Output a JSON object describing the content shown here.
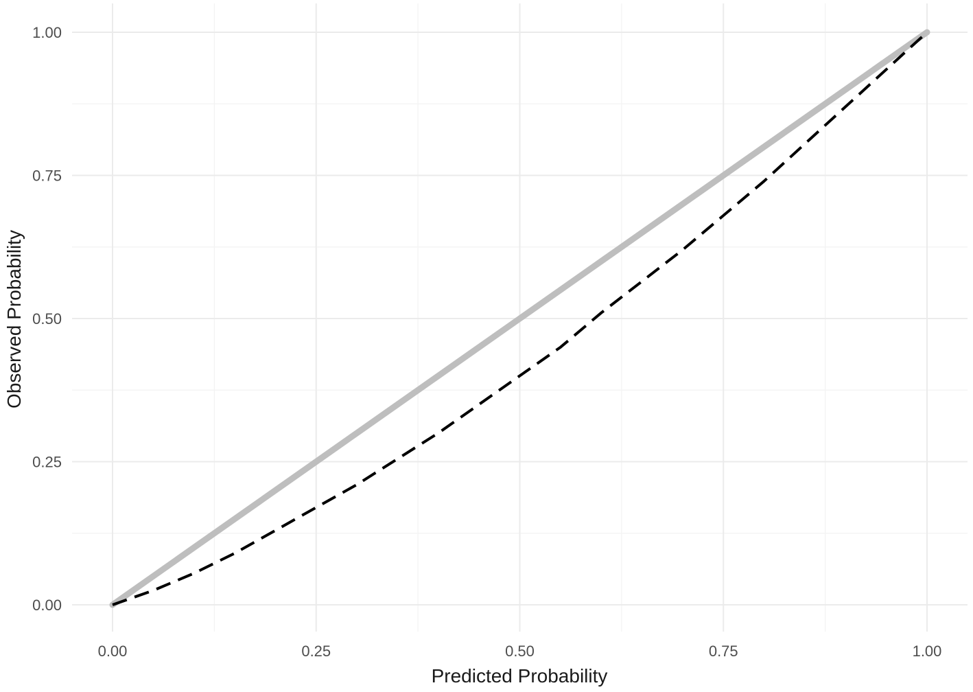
{
  "chart_data": {
    "type": "line",
    "title": "",
    "xlabel": "Predicted Probability",
    "ylabel": "Observed Probability",
    "xlim": [
      0,
      1
    ],
    "ylim": [
      0,
      1
    ],
    "x_ticks": [
      0,
      0.25,
      0.5,
      0.75,
      1
    ],
    "x_tick_labels": [
      "0.00",
      "0.25",
      "0.50",
      "0.75",
      "1.00"
    ],
    "y_ticks": [
      0,
      0.25,
      0.5,
      0.75,
      1
    ],
    "y_tick_labels": [
      "0.00",
      "0.25",
      "0.50",
      "0.75",
      "1.00"
    ],
    "grid": true,
    "legend": "none",
    "series": [
      {
        "style": "solid",
        "color": "#bebebe",
        "x": [
          0,
          0.1,
          0.2,
          0.3,
          0.4,
          0.5,
          0.6,
          0.7,
          0.8,
          0.9,
          1.0
        ],
        "y": [
          0,
          0.1,
          0.2,
          0.3,
          0.4,
          0.5,
          0.6,
          0.7,
          0.8,
          0.9,
          1.0
        ]
      },
      {
        "style": "dashed",
        "color": "#000000",
        "x": [
          0,
          0.05,
          0.1,
          0.15,
          0.2,
          0.25,
          0.3,
          0.35,
          0.4,
          0.45,
          0.5,
          0.55,
          0.6,
          0.65,
          0.7,
          0.75,
          0.8,
          0.85,
          0.9,
          0.95,
          1.0
        ],
        "y": [
          0,
          0.025,
          0.055,
          0.09,
          0.13,
          0.17,
          0.21,
          0.255,
          0.3,
          0.35,
          0.4,
          0.45,
          0.51,
          0.565,
          0.62,
          0.68,
          0.74,
          0.805,
          0.87,
          0.935,
          1.0
        ]
      }
    ]
  }
}
